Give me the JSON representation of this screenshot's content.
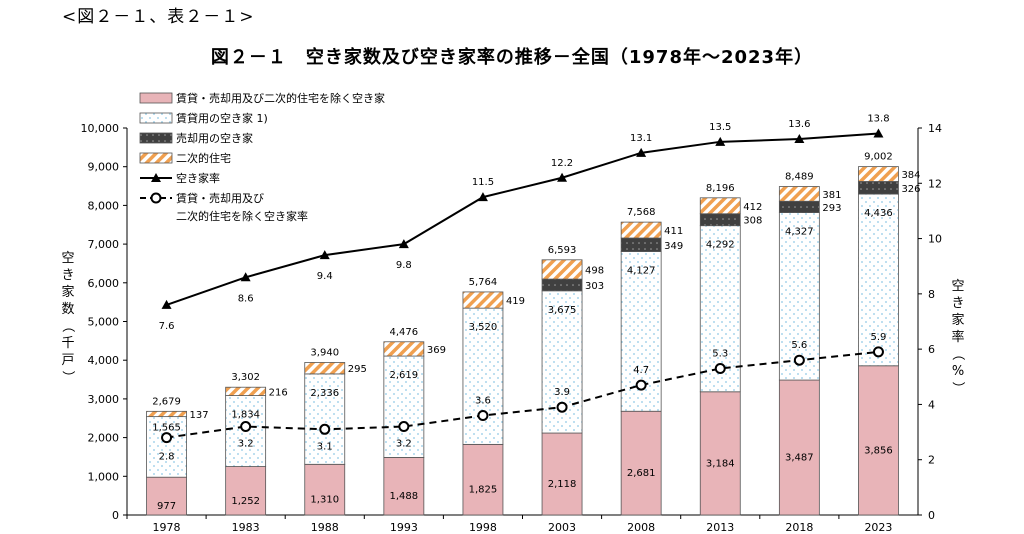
{
  "caption": "<図２－１、表２－１>",
  "chart_data": {
    "type": "bar",
    "title": "図２－１　空き家数及び空き家率の推移－全国（1978年～2023年）",
    "categories": [
      "1978",
      "1983",
      "1988",
      "1993",
      "1998",
      "2003",
      "2008",
      "2013",
      "2018",
      "2023"
    ],
    "series": [
      {
        "name": "賃貸・売却用及び二次的住宅を除く空き家",
        "kind": "bar",
        "values": [
          977,
          1252,
          1310,
          1488,
          1825,
          2118,
          2681,
          3184,
          3487,
          3856
        ]
      },
      {
        "name": "賃貸用の空き家 1)",
        "kind": "bar",
        "values": [
          1565,
          1834,
          2336,
          2619,
          3520,
          3675,
          4127,
          4292,
          4327,
          4436
        ]
      },
      {
        "name": "売却用の空き家",
        "kind": "bar",
        "values": [
          null,
          null,
          null,
          null,
          null,
          303,
          349,
          308,
          293,
          326
        ]
      },
      {
        "name": "二次的住宅",
        "kind": "bar",
        "values": [
          137,
          216,
          295,
          369,
          419,
          498,
          411,
          412,
          381,
          384
        ]
      },
      {
        "name": "空き家率",
        "kind": "line",
        "axis": "right",
        "values": [
          7.6,
          8.6,
          9.4,
          9.8,
          11.5,
          12.2,
          13.1,
          13.5,
          13.6,
          13.8
        ]
      },
      {
        "name": "賃貸・売却用及び二次的住宅を除く空き家率",
        "legend_label": [
          "賃貸・売却用及び",
          "二次的住宅を除く空き家率"
        ],
        "kind": "line",
        "axis": "right",
        "dashed": true,
        "values": [
          2.8,
          3.2,
          3.1,
          3.2,
          3.6,
          3.9,
          4.7,
          5.3,
          5.6,
          5.9
        ]
      }
    ],
    "totals": [
      2679,
      3302,
      3940,
      4476,
      5764,
      6593,
      7568,
      8196,
      8489,
      9002
    ],
    "totals_labels": [
      "2,679",
      "3,302",
      "3,940",
      "4,476",
      "5,764",
      "6,593",
      "7,568",
      "8,196",
      "8,489",
      "9,002"
    ],
    "bar_labels": {
      "rental": [
        "1,565",
        "1,834",
        "2,336",
        "2,619",
        "3,520",
        "3,675",
        "4,127",
        "4,292",
        "4,327",
        "4,436"
      ],
      "other": [
        "977",
        "1,252",
        "1,310",
        "1,488",
        "1,825",
        "2,118",
        "2,681",
        "3,184",
        "3,487",
        "3,856"
      ],
      "sale": [
        "",
        "",
        "",
        "",
        "",
        "303",
        "349",
        "308",
        "293",
        "326"
      ],
      "second": [
        "137",
        "216",
        "295",
        "369",
        "419",
        "498",
        "411",
        "412",
        "381",
        "384"
      ],
      "rate": [
        "7.6",
        "8.6",
        "9.4",
        "9.8",
        "11.5",
        "12.2",
        "13.1",
        "13.5",
        "13.6",
        "13.8"
      ],
      "rate_other": [
        "2.8",
        "3.2",
        "3.1",
        "3.2",
        "3.6",
        "3.9",
        "4.7",
        "5.3",
        "5.6",
        "5.9"
      ]
    },
    "ylabel_left": "空き家数（千戸）",
    "ylabel_right": "空き家率（%）",
    "ylim_left": [
      0,
      10000
    ],
    "yticks_left": [
      "0",
      "1,000",
      "2,000",
      "3,000",
      "4,000",
      "5,000",
      "6,000",
      "7,000",
      "8,000",
      "9,000",
      "10,000"
    ],
    "ylim_right": [
      0,
      14
    ],
    "yticks_right": [
      "0",
      "2",
      "4",
      "6",
      "8",
      "10",
      "12",
      "14"
    ],
    "grid": false,
    "legend_position": "top-left",
    "colors": {
      "other": "#e8b4b8",
      "rental_fill": "#ffffff",
      "rental_dots": "#8fc9e6",
      "sale": "#404040",
      "second_stripe": "#f0a050",
      "line": "#000000"
    }
  }
}
